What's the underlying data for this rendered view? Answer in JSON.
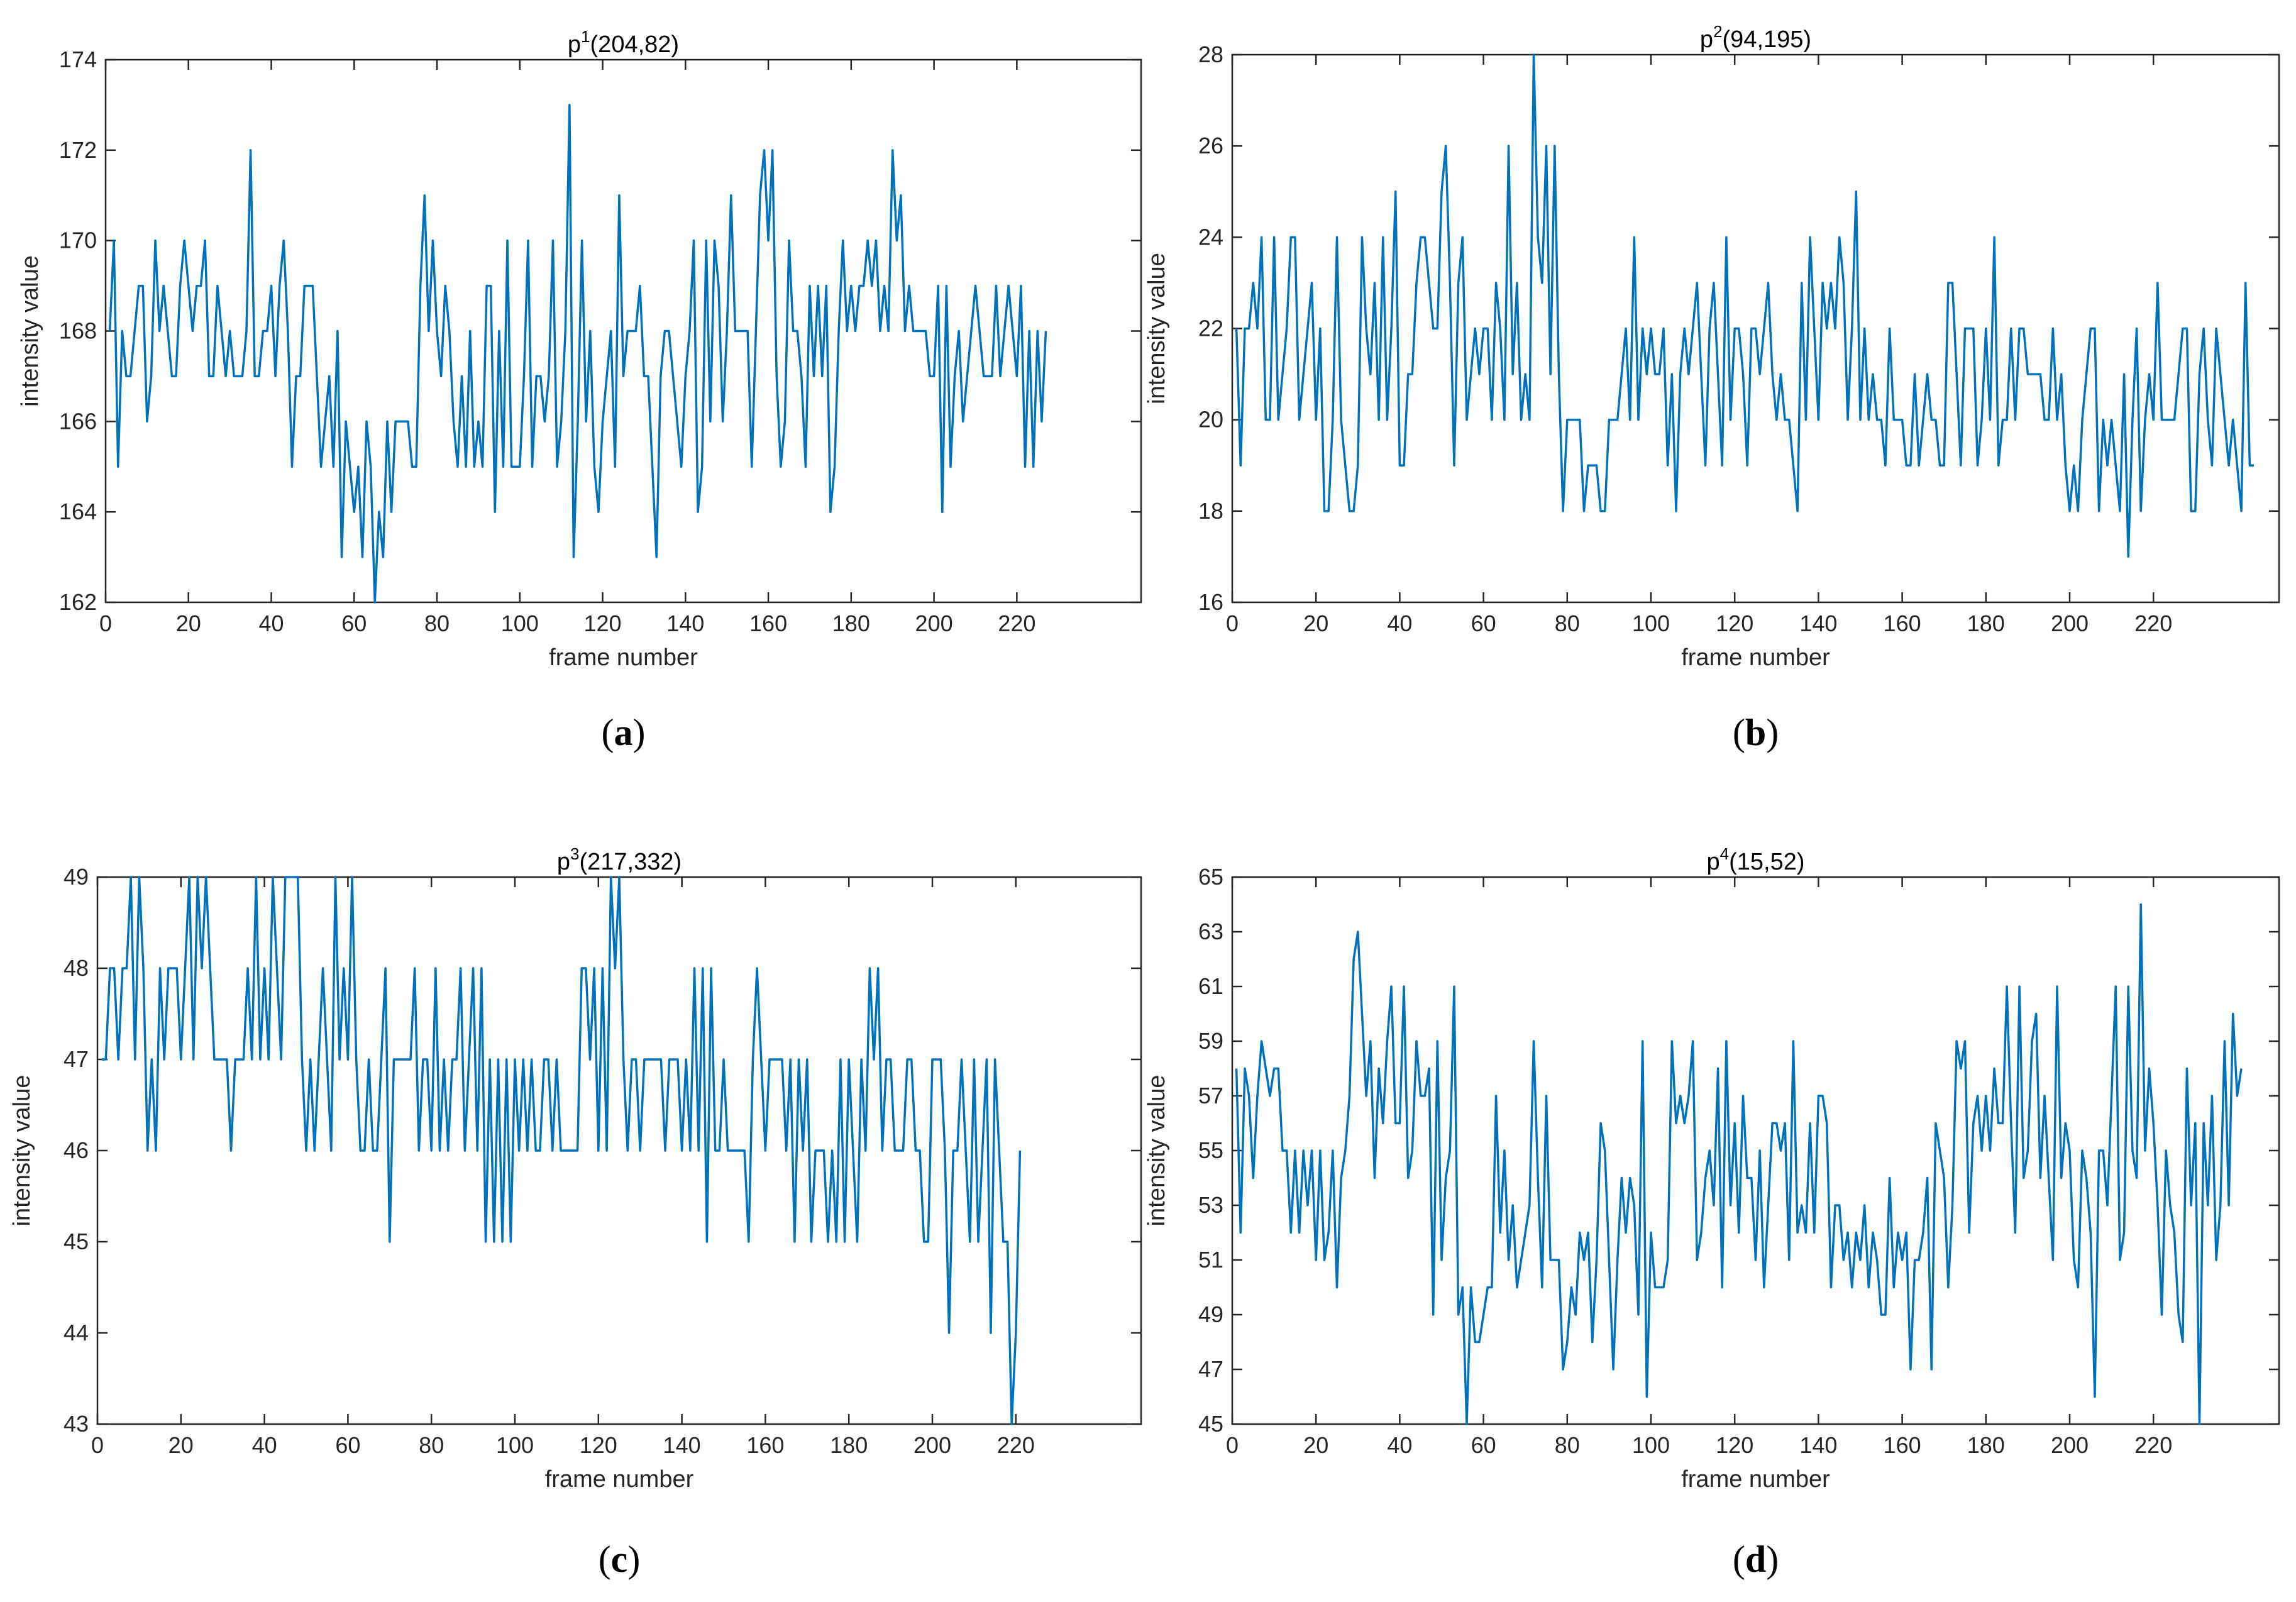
{
  "figure": {
    "line_color": "#0072BD",
    "panels": [
      {
        "id": "a",
        "label": "a",
        "title_base": "p",
        "title_sup": "1",
        "title_rest": "(204,82)"
      },
      {
        "id": "b",
        "label": "b",
        "title_base": "p",
        "title_sup": "2",
        "title_rest": "(94,195)"
      },
      {
        "id": "c",
        "label": "c",
        "title_base": "p",
        "title_sup": "3",
        "title_rest": "(217,332)"
      },
      {
        "id": "d",
        "label": "d",
        "title_base": "p",
        "title_sup": "4",
        "title_rest": "(15,52)"
      }
    ]
  },
  "chart_data": [
    {
      "type": "line",
      "title": "p1(204,82)",
      "xlabel": "frame number",
      "ylabel": "intensity value",
      "xlim": [
        0,
        250
      ],
      "ylim": [
        162,
        174
      ],
      "xticks": [
        0,
        20,
        40,
        60,
        80,
        100,
        120,
        140,
        160,
        180,
        200,
        220
      ],
      "yticks": [
        162,
        164,
        166,
        168,
        170,
        172,
        174
      ],
      "grid": false,
      "series": [
        {
          "x_start": 1,
          "values": [
            168,
            170,
            165,
            168,
            167,
            167,
            168,
            169,
            169,
            166,
            167,
            170,
            168,
            169,
            168,
            167,
            167,
            169,
            170,
            169,
            168,
            169,
            169,
            170,
            167,
            167,
            169,
            168,
            167,
            168,
            167,
            167,
            167,
            168,
            172,
            167,
            167,
            168,
            168,
            169,
            167,
            169,
            170,
            168,
            165,
            167,
            167,
            169,
            169,
            169,
            167,
            165,
            166,
            167,
            165,
            168,
            163,
            166,
            165,
            164,
            165,
            163,
            166,
            165,
            162,
            164,
            163,
            166,
            164,
            166,
            166,
            166,
            166,
            165,
            165,
            169,
            171,
            168,
            170,
            168,
            167,
            169,
            168,
            166,
            165,
            167,
            165,
            168,
            165,
            166,
            165,
            169,
            169,
            164,
            168,
            165,
            170,
            165,
            165,
            165,
            167,
            170,
            165,
            167,
            167,
            166,
            167,
            170,
            165,
            166,
            168,
            173,
            163,
            166,
            170,
            166,
            168,
            165,
            164,
            166,
            167,
            168,
            165,
            171,
            167,
            168,
            168,
            168,
            169,
            167,
            167,
            165,
            163,
            167,
            168,
            168,
            167,
            166,
            165,
            167,
            168,
            170,
            164,
            165,
            170,
            166,
            170,
            169,
            166,
            168,
            171,
            168,
            168,
            168,
            168,
            165,
            168,
            171,
            172,
            170,
            172,
            167,
            165,
            166,
            170,
            168,
            168,
            167,
            165,
            169,
            167,
            169,
            167,
            169,
            164,
            165,
            168,
            170,
            168,
            169,
            168,
            169,
            169,
            170,
            169,
            170,
            168,
            169,
            168,
            172,
            170,
            171,
            168,
            169,
            168,
            168,
            168,
            168,
            167,
            167,
            169,
            164,
            169,
            165,
            167,
            168,
            166,
            167,
            168,
            169,
            168,
            167,
            167,
            167,
            169,
            167,
            168,
            169,
            168,
            167,
            169,
            165,
            168,
            165,
            168,
            166,
            168
          ]
        }
      ]
    },
    {
      "type": "line",
      "title": "p2(94,195)",
      "xlabel": "frame number",
      "ylabel": "intensity value",
      "xlim": [
        0,
        250
      ],
      "ylim": [
        16,
        28
      ],
      "xticks": [
        0,
        20,
        40,
        60,
        80,
        100,
        120,
        140,
        160,
        180,
        200,
        220
      ],
      "yticks": [
        16,
        18,
        20,
        22,
        24,
        26,
        28
      ],
      "grid": false,
      "series": [
        {
          "x_start": 1,
          "values": [
            22,
            19,
            22,
            22,
            23,
            22,
            24,
            20,
            20,
            24,
            20,
            21,
            22,
            24,
            24,
            20,
            21,
            22,
            23,
            20,
            22,
            18,
            18,
            20,
            24,
            20,
            19,
            18,
            18,
            19,
            24,
            22,
            21,
            23,
            20,
            24,
            20,
            22,
            25,
            19,
            19,
            21,
            21,
            23,
            24,
            24,
            23,
            22,
            22,
            25,
            26,
            23,
            19,
            23,
            24,
            20,
            21,
            22,
            21,
            22,
            22,
            20,
            23,
            22,
            20,
            26,
            21,
            23,
            20,
            21,
            20,
            28,
            24,
            23,
            26,
            21,
            26,
            21,
            18,
            20,
            20,
            20,
            20,
            18,
            19,
            19,
            19,
            18,
            18,
            20,
            20,
            20,
            21,
            22,
            20,
            24,
            20,
            22,
            21,
            22,
            21,
            21,
            22,
            19,
            21,
            18,
            21,
            22,
            21,
            22,
            23,
            21,
            19,
            22,
            23,
            21,
            19,
            24,
            20,
            22,
            22,
            21,
            19,
            22,
            22,
            21,
            22,
            23,
            21,
            20,
            21,
            20,
            20,
            19,
            18,
            23,
            20,
            24,
            22,
            20,
            23,
            22,
            23,
            22,
            24,
            23,
            20,
            22,
            25,
            20,
            22,
            20,
            21,
            20,
            20,
            19,
            22,
            20,
            20,
            20,
            19,
            19,
            21,
            19,
            20,
            21,
            20,
            20,
            19,
            19,
            23,
            23,
            21,
            19,
            22,
            22,
            22,
            19,
            20,
            22,
            20,
            24,
            19,
            20,
            20,
            22,
            20,
            22,
            22,
            21,
            21,
            21,
            21,
            20,
            20,
            22,
            20,
            21,
            19,
            18,
            19,
            18,
            20,
            21,
            22,
            22,
            18,
            20,
            19,
            20,
            19,
            18,
            21,
            17,
            20,
            22,
            18,
            20,
            21,
            20,
            23,
            20,
            20,
            20,
            20,
            21,
            22,
            22,
            18,
            18,
            21,
            22,
            20,
            19,
            22,
            21,
            20,
            19,
            20,
            19,
            18,
            23,
            19,
            19
          ]
        }
      ]
    },
    {
      "type": "line",
      "title": "p3(217,332)",
      "xlabel": "frame number",
      "ylabel": "intensity value",
      "xlim": [
        0,
        250
      ],
      "ylim": [
        43,
        49
      ],
      "xticks": [
        0,
        20,
        40,
        60,
        80,
        100,
        120,
        140,
        160,
        180,
        200,
        220
      ],
      "yticks": [
        43,
        44,
        45,
        46,
        47,
        48,
        49
      ],
      "grid": false,
      "series": [
        {
          "x_start": 1,
          "values": [
            47,
            47,
            48,
            48,
            47,
            48,
            48,
            49,
            47,
            49,
            48,
            46,
            47,
            46,
            48,
            47,
            48,
            48,
            48,
            47,
            48,
            49,
            47,
            49,
            48,
            49,
            48,
            47,
            47,
            47,
            47,
            46,
            47,
            47,
            47,
            48,
            47,
            49,
            47,
            48,
            47,
            49,
            48,
            47,
            49,
            49,
            49,
            49,
            47,
            46,
            47,
            46,
            47,
            48,
            47,
            46,
            49,
            47,
            48,
            47,
            49,
            47,
            46,
            46,
            47,
            46,
            46,
            47,
            48,
            45,
            47,
            47,
            47,
            47,
            47,
            48,
            46,
            47,
            47,
            46,
            48,
            46,
            47,
            46,
            47,
            47,
            48,
            46,
            47,
            48,
            46,
            48,
            45,
            47,
            45,
            47,
            45,
            47,
            45,
            47,
            46,
            47,
            46,
            47,
            46,
            46,
            47,
            47,
            46,
            47,
            46,
            46,
            46,
            46,
            46,
            48,
            48,
            47,
            48,
            46,
            48,
            46,
            49,
            48,
            49,
            47,
            46,
            47,
            47,
            46,
            47,
            47,
            47,
            47,
            47,
            46,
            47,
            47,
            47,
            46,
            47,
            46,
            48,
            46,
            48,
            45,
            48,
            46,
            46,
            47,
            46,
            46,
            46,
            46,
            46,
            45,
            47,
            48,
            47,
            46,
            47,
            47,
            47,
            47,
            46,
            47,
            45,
            47,
            46,
            47,
            45,
            46,
            46,
            46,
            45,
            46,
            45,
            47,
            45,
            47,
            46,
            45,
            47,
            46,
            48,
            47,
            48,
            46,
            47,
            47,
            46,
            46,
            46,
            47,
            47,
            46,
            46,
            45,
            45,
            47,
            47,
            47,
            46,
            44,
            46,
            46,
            47,
            46,
            45,
            47,
            45,
            46,
            47,
            44,
            47,
            46,
            45,
            45,
            43,
            44,
            46
          ]
        }
      ]
    },
    {
      "type": "line",
      "title": "p4(15,52)",
      "xlabel": "frame number",
      "ylabel": "intensity value",
      "xlim": [
        0,
        250
      ],
      "ylim": [
        45,
        65
      ],
      "xticks": [
        0,
        20,
        40,
        60,
        80,
        100,
        120,
        140,
        160,
        180,
        200,
        220
      ],
      "yticks": [
        45,
        47,
        49,
        51,
        53,
        55,
        57,
        59,
        61,
        63,
        65
      ],
      "grid": false,
      "series": [
        {
          "x_start": 1,
          "values": [
            58,
            52,
            58,
            57,
            54,
            57,
            59,
            58,
            57,
            58,
            58,
            55,
            55,
            52,
            55,
            52,
            55,
            53,
            55,
            51,
            55,
            51,
            52,
            55,
            50,
            54,
            55,
            57,
            62,
            63,
            60,
            57,
            59,
            54,
            58,
            56,
            59,
            61,
            56,
            56,
            61,
            54,
            55,
            59,
            57,
            57,
            58,
            49,
            59,
            51,
            54,
            55,
            61,
            49,
            50,
            45,
            50,
            48,
            48,
            49,
            50,
            50,
            57,
            52,
            55,
            51,
            53,
            50,
            51,
            52,
            53,
            59,
            54,
            50,
            57,
            51,
            51,
            51,
            47,
            48,
            50,
            49,
            52,
            51,
            52,
            48,
            51,
            56,
            55,
            51,
            47,
            51,
            54,
            52,
            54,
            53,
            49,
            59,
            46,
            52,
            50,
            50,
            50,
            51,
            59,
            56,
            57,
            56,
            57,
            59,
            51,
            52,
            54,
            55,
            53,
            58,
            50,
            59,
            53,
            56,
            52,
            57,
            54,
            54,
            51,
            55,
            50,
            53,
            56,
            56,
            55,
            56,
            51,
            59,
            52,
            53,
            52,
            56,
            52,
            57,
            57,
            56,
            50,
            53,
            53,
            51,
            52,
            50,
            52,
            51,
            53,
            50,
            52,
            51,
            49,
            49,
            54,
            50,
            52,
            51,
            52,
            47,
            51,
            51,
            52,
            54,
            47,
            56,
            55,
            54,
            50,
            53,
            59,
            58,
            59,
            52,
            56,
            57,
            55,
            57,
            55,
            58,
            56,
            56,
            61,
            56,
            52,
            61,
            54,
            55,
            59,
            60,
            54,
            57,
            54,
            51,
            61,
            54,
            56,
            55,
            51,
            50,
            55,
            54,
            52,
            46,
            55,
            55,
            53,
            57,
            61,
            51,
            52,
            61,
            55,
            54,
            64,
            55,
            58,
            56,
            53,
            49,
            55,
            53,
            52,
            49,
            48,
            58,
            53,
            56,
            45,
            56,
            53,
            57,
            51,
            53,
            59,
            53,
            60,
            57,
            58
          ]
        }
      ]
    }
  ]
}
